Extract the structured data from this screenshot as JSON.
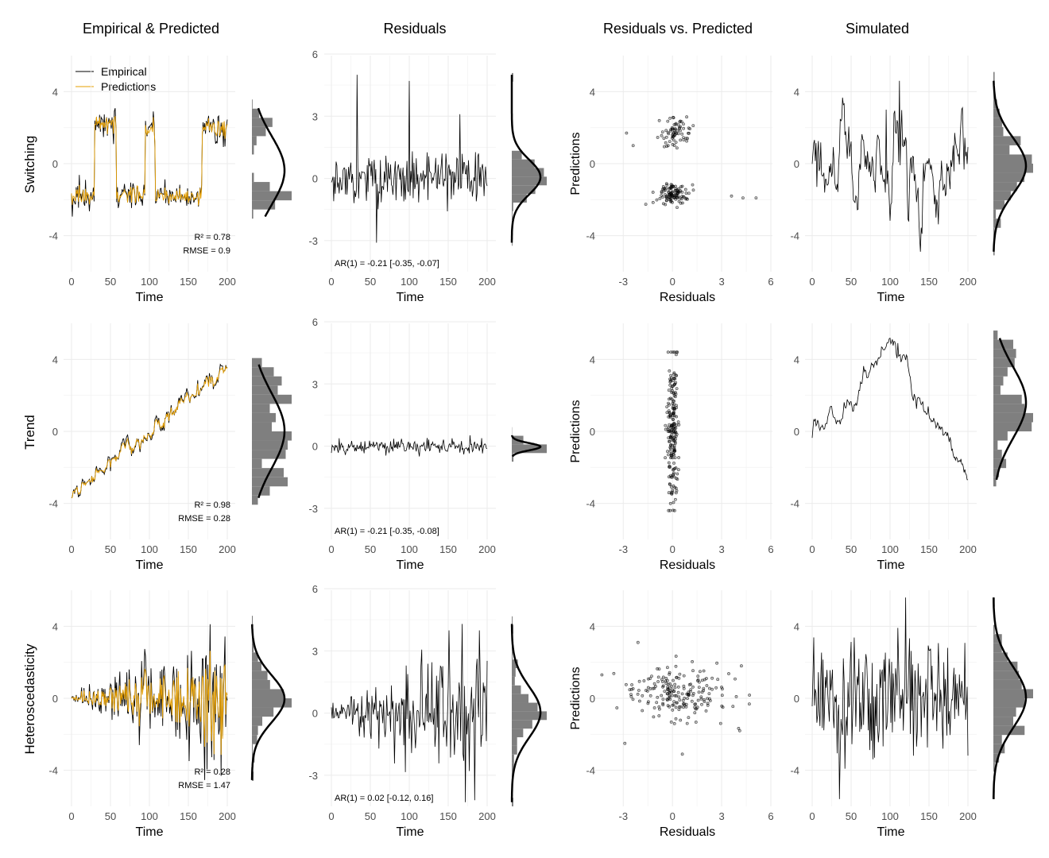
{
  "column_titles": [
    "Empirical & Predicted",
    "Residuals",
    "Residuals vs. Predicted",
    "Simulated"
  ],
  "row_labels": [
    "Switching",
    "Trend",
    "Heteroscedasticity"
  ],
  "legend": {
    "empirical": "Empirical",
    "predictions": "Predictions"
  },
  "axis_titles": {
    "time": "Time",
    "residuals": "Residuals",
    "predictions": "Predictions"
  },
  "colors": {
    "empirical": "#000000",
    "predictions": "#e69f00",
    "histogram": "#7f7f7f",
    "density": "#000000"
  },
  "chart_data": {
    "type": "line",
    "layout": "3x4 facet grid of time-series panels with marginal histograms",
    "grid": true,
    "legend_position": "top-left of first panel",
    "axes": {
      "time": {
        "range": [
          0,
          200
        ],
        "ticks": [
          0,
          50,
          100,
          150,
          200
        ]
      },
      "series_y": {
        "range": [
          -6,
          6
        ],
        "ticks": [
          -4,
          0,
          4
        ]
      },
      "residual_y": {
        "range": [
          -4.5,
          6
        ],
        "ticks": [
          -3,
          0,
          3,
          6
        ]
      },
      "residual_x": {
        "range": [
          -5,
          6
        ],
        "ticks": [
          -3,
          0,
          3,
          6
        ]
      }
    },
    "rows": [
      {
        "name": "Switching",
        "r2": "R² = 0.78",
        "rmse": "RMSE = 0.9",
        "ar1": "AR(1) = -0.21 [-0.35, -0.07]",
        "regimes": [
          {
            "start": 0,
            "end": 30,
            "mean": -1.8
          },
          {
            "start": 30,
            "end": 58,
            "mean": 2.2
          },
          {
            "start": 58,
            "end": 95,
            "mean": -1.7
          },
          {
            "start": 95,
            "end": 108,
            "mean": 1.9
          },
          {
            "start": 108,
            "end": 168,
            "mean": -1.8
          },
          {
            "start": 168,
            "end": 200,
            "mean": 2.0
          }
        ],
        "empirical_noise_sd": 0.45,
        "prediction_noise_sd": 0.3,
        "residual_sd": 0.65,
        "residual_spikes": [
          {
            "t": 33,
            "v": 5.0
          },
          {
            "t": 100,
            "v": 4.7
          },
          {
            "t": 58,
            "v": -3.1
          },
          {
            "t": 165,
            "v": 3.1
          }
        ],
        "scatter": [
          {
            "x_mean": 0.2,
            "y_mean": 1.8,
            "sd_x": 0.45,
            "sd_y": 0.4,
            "n": 70
          },
          {
            "x_mean": 0.0,
            "y_mean": -1.7,
            "sd_x": 0.5,
            "sd_y": 0.3,
            "n": 110
          }
        ],
        "scatter_outliers": [
          [
            -2.8,
            1.7
          ],
          [
            -2.4,
            1.0
          ],
          [
            3.6,
            -1.8
          ],
          [
            4.3,
            -1.9
          ],
          [
            5.1,
            -1.9
          ]
        ],
        "simulated_ar": 0.85,
        "simulated_sd": 0.85,
        "simulated_bumps": [
          {
            "t": 112,
            "v": 4.6
          },
          {
            "t": 95,
            "v": 3.0
          }
        ]
      },
      {
        "name": "Trend",
        "r2": "R² = 0.98",
        "rmse": "RMSE = 0.28",
        "ar1": "AR(1) = -0.21 [-0.35, -0.08]",
        "trend": {
          "intercept": -3.6,
          "slope": 0.0355
        },
        "empirical_noise_sd": 0.22,
        "prediction_noise_sd": 0.12,
        "residual_sd": 0.2,
        "scatter": [
          {
            "x_mean": 0.0,
            "y_mean": 0.0,
            "sd_x": 0.18,
            "sd_y": 2.0,
            "n": 200
          }
        ],
        "scatter_outliers": [],
        "simulated_ar": 0.97,
        "simulated_sd": 0.35,
        "simulated_bumps": [
          {
            "t": 110,
            "v": 4.9
          }
        ]
      },
      {
        "name": "Heteroscedasticity",
        "r2": "R² = 0.28",
        "rmse": "RMSE = 1.47",
        "ar1": "AR(1) = 0.02 [-0.12, 0.16]",
        "empirical_noise_sd_growth": [
          0.1,
          2.3
        ],
        "prediction_noise_sd_growth": [
          0.05,
          1.5
        ],
        "residual_sd_growth": [
          0.2,
          2.0
        ],
        "residual_spikes": [
          {
            "t": 168,
            "v": 4.3
          },
          {
            "t": 172,
            "v": -4.3
          }
        ],
        "scatter": [
          {
            "x_mean": 0.5,
            "y_mean": 0.1,
            "sd_x": 1.5,
            "sd_y": 0.75,
            "n": 200
          }
        ],
        "scatter_outliers": [
          [
            -4.3,
            1.3
          ],
          [
            -2.1,
            3.1
          ],
          [
            4.2,
            1.8
          ],
          [
            4.1,
            -1.8
          ],
          [
            -2.9,
            -2.5
          ],
          [
            0.6,
            -3.1
          ]
        ],
        "simulated_ar": 0.0,
        "simulated_sd": 1.9,
        "simulated_bumps": []
      }
    ]
  }
}
